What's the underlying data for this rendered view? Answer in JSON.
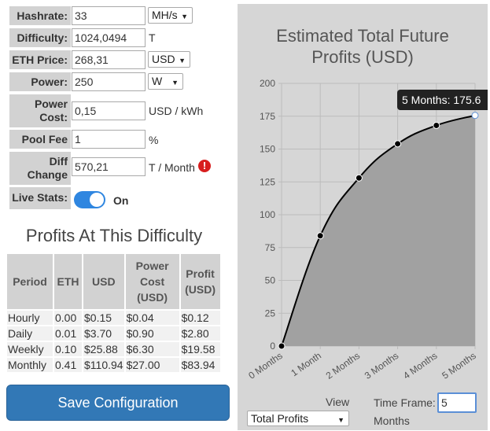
{
  "form": {
    "hashrate": {
      "label": "Hashrate:",
      "value": "33",
      "unit": "MH/s"
    },
    "difficulty": {
      "label": "Difficulty:",
      "value": "1024,0494",
      "unit": "T"
    },
    "eth_price": {
      "label": "ETH Price:",
      "value": "268,31",
      "unit": "USD"
    },
    "power": {
      "label": "Power:",
      "value": "250",
      "unit": "W"
    },
    "power_cost": {
      "label_line1": "Power",
      "label_line2": "Cost:",
      "value": "0,15",
      "unit": "USD / kWh"
    },
    "pool_fee": {
      "label": "Pool Fee",
      "value": "1",
      "unit": "%"
    },
    "diff_change": {
      "label_line1": "Diff",
      "label_line2": "Change",
      "value": "570,21",
      "unit": "T / Month",
      "alert_glyph": "!"
    },
    "live_stats": {
      "label": "Live Stats:",
      "state": "On"
    }
  },
  "profits": {
    "title": "Profits At This Difficulty",
    "headers": [
      {
        "line1": "Period",
        "line2": "",
        "line3": ""
      },
      {
        "line1": "ETH",
        "line2": "",
        "line3": ""
      },
      {
        "line1": "USD",
        "line2": "",
        "line3": ""
      },
      {
        "line1": "Power",
        "line2": "Cost",
        "line3": "(USD)"
      },
      {
        "line1": "Profit",
        "line2": "(USD)",
        "line3": ""
      }
    ],
    "rows": [
      [
        "Hourly",
        "0.00",
        "$0.15",
        "$0.04",
        "$0.12"
      ],
      [
        "Daily",
        "0.01",
        "$3.70",
        "$0.90",
        "$2.80"
      ],
      [
        "Weekly",
        "0.10",
        "$25.88",
        "$6.30",
        "$19.58"
      ],
      [
        "Monthly",
        "0.41",
        "$110.94",
        "$27.00",
        "$83.94"
      ]
    ]
  },
  "save_button": "Save Configuration",
  "chart_controls": {
    "view_label": "View",
    "view_value": "Total Profits",
    "timeframe_label": "Time Frame:",
    "timeframe_value": "5",
    "timeframe_unit": "Months"
  },
  "chart_data": {
    "type": "area",
    "title_line1": "Estimated Total Future",
    "title_line2": "Profits (USD)",
    "categories": [
      "0 Months",
      "1 Month",
      "2 Months",
      "3 Months",
      "4 Months",
      "5 Months"
    ],
    "values": [
      0,
      84,
      128,
      154,
      168,
      175.6
    ],
    "yticks": [
      0,
      25,
      50,
      75,
      100,
      125,
      150,
      175,
      200
    ],
    "ylim": [
      0,
      200
    ],
    "grid": true,
    "tooltip": "5 Months: 175.6",
    "colors": {
      "fill": "#a1a1a1",
      "line": "#000000",
      "point_fill": "#000000"
    }
  }
}
